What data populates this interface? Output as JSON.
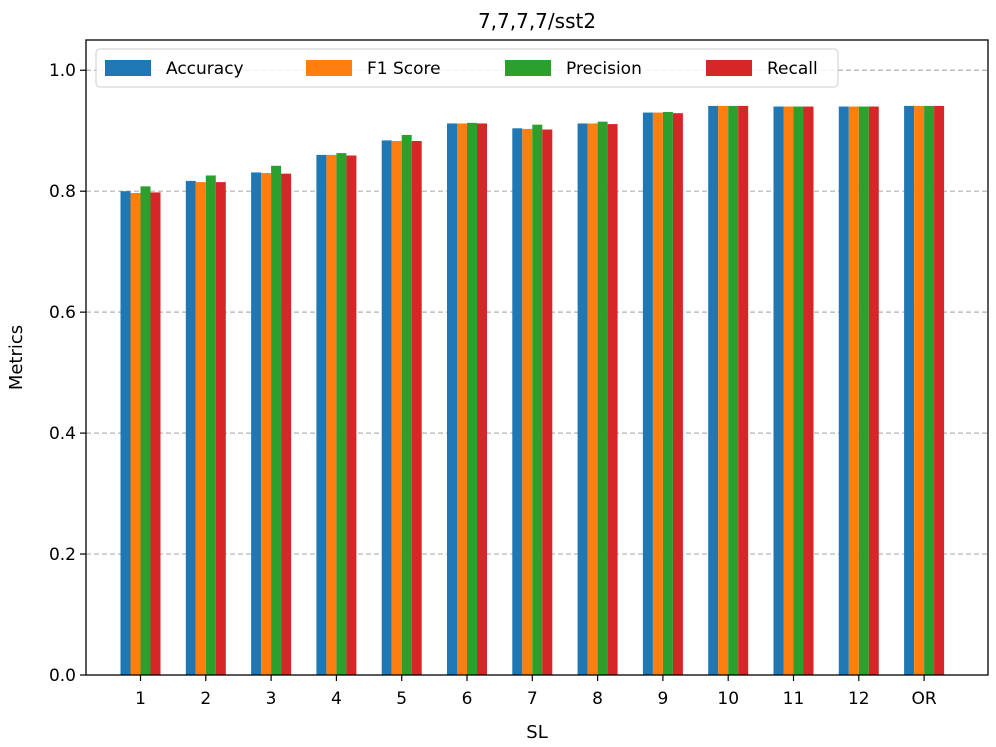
{
  "chart_data": {
    "type": "bar",
    "title": "7,7,7,7/sst2",
    "xlabel": "SL",
    "ylabel": "Metrics",
    "categories": [
      "1",
      "2",
      "3",
      "4",
      "5",
      "6",
      "7",
      "8",
      "9",
      "10",
      "11",
      "12",
      "OR"
    ],
    "ylim": [
      0,
      1.05
    ],
    "yticks": [
      0.0,
      0.2,
      0.4,
      0.6,
      0.8,
      1.0
    ],
    "ytick_labels": [
      "0.0",
      "0.2",
      "0.4",
      "0.6",
      "0.8",
      "1.0"
    ],
    "grid": "horizontal dashed",
    "legend_position": "top",
    "series": [
      {
        "name": "Accuracy",
        "color": "#1f77b4",
        "values": [
          0.8,
          0.817,
          0.831,
          0.86,
          0.884,
          0.912,
          0.904,
          0.912,
          0.93,
          0.941,
          0.94,
          0.94,
          0.941
        ]
      },
      {
        "name": "F1 Score",
        "color": "#ff7f0e",
        "values": [
          0.797,
          0.815,
          0.83,
          0.86,
          0.883,
          0.912,
          0.903,
          0.912,
          0.93,
          0.941,
          0.94,
          0.94,
          0.941
        ]
      },
      {
        "name": "Precision",
        "color": "#2ca02c",
        "values": [
          0.808,
          0.826,
          0.842,
          0.863,
          0.893,
          0.913,
          0.91,
          0.915,
          0.931,
          0.941,
          0.94,
          0.94,
          0.941
        ]
      },
      {
        "name": "Recall",
        "color": "#d62728",
        "values": [
          0.798,
          0.815,
          0.829,
          0.859,
          0.883,
          0.912,
          0.902,
          0.911,
          0.929,
          0.941,
          0.94,
          0.94,
          0.941
        ]
      }
    ]
  }
}
